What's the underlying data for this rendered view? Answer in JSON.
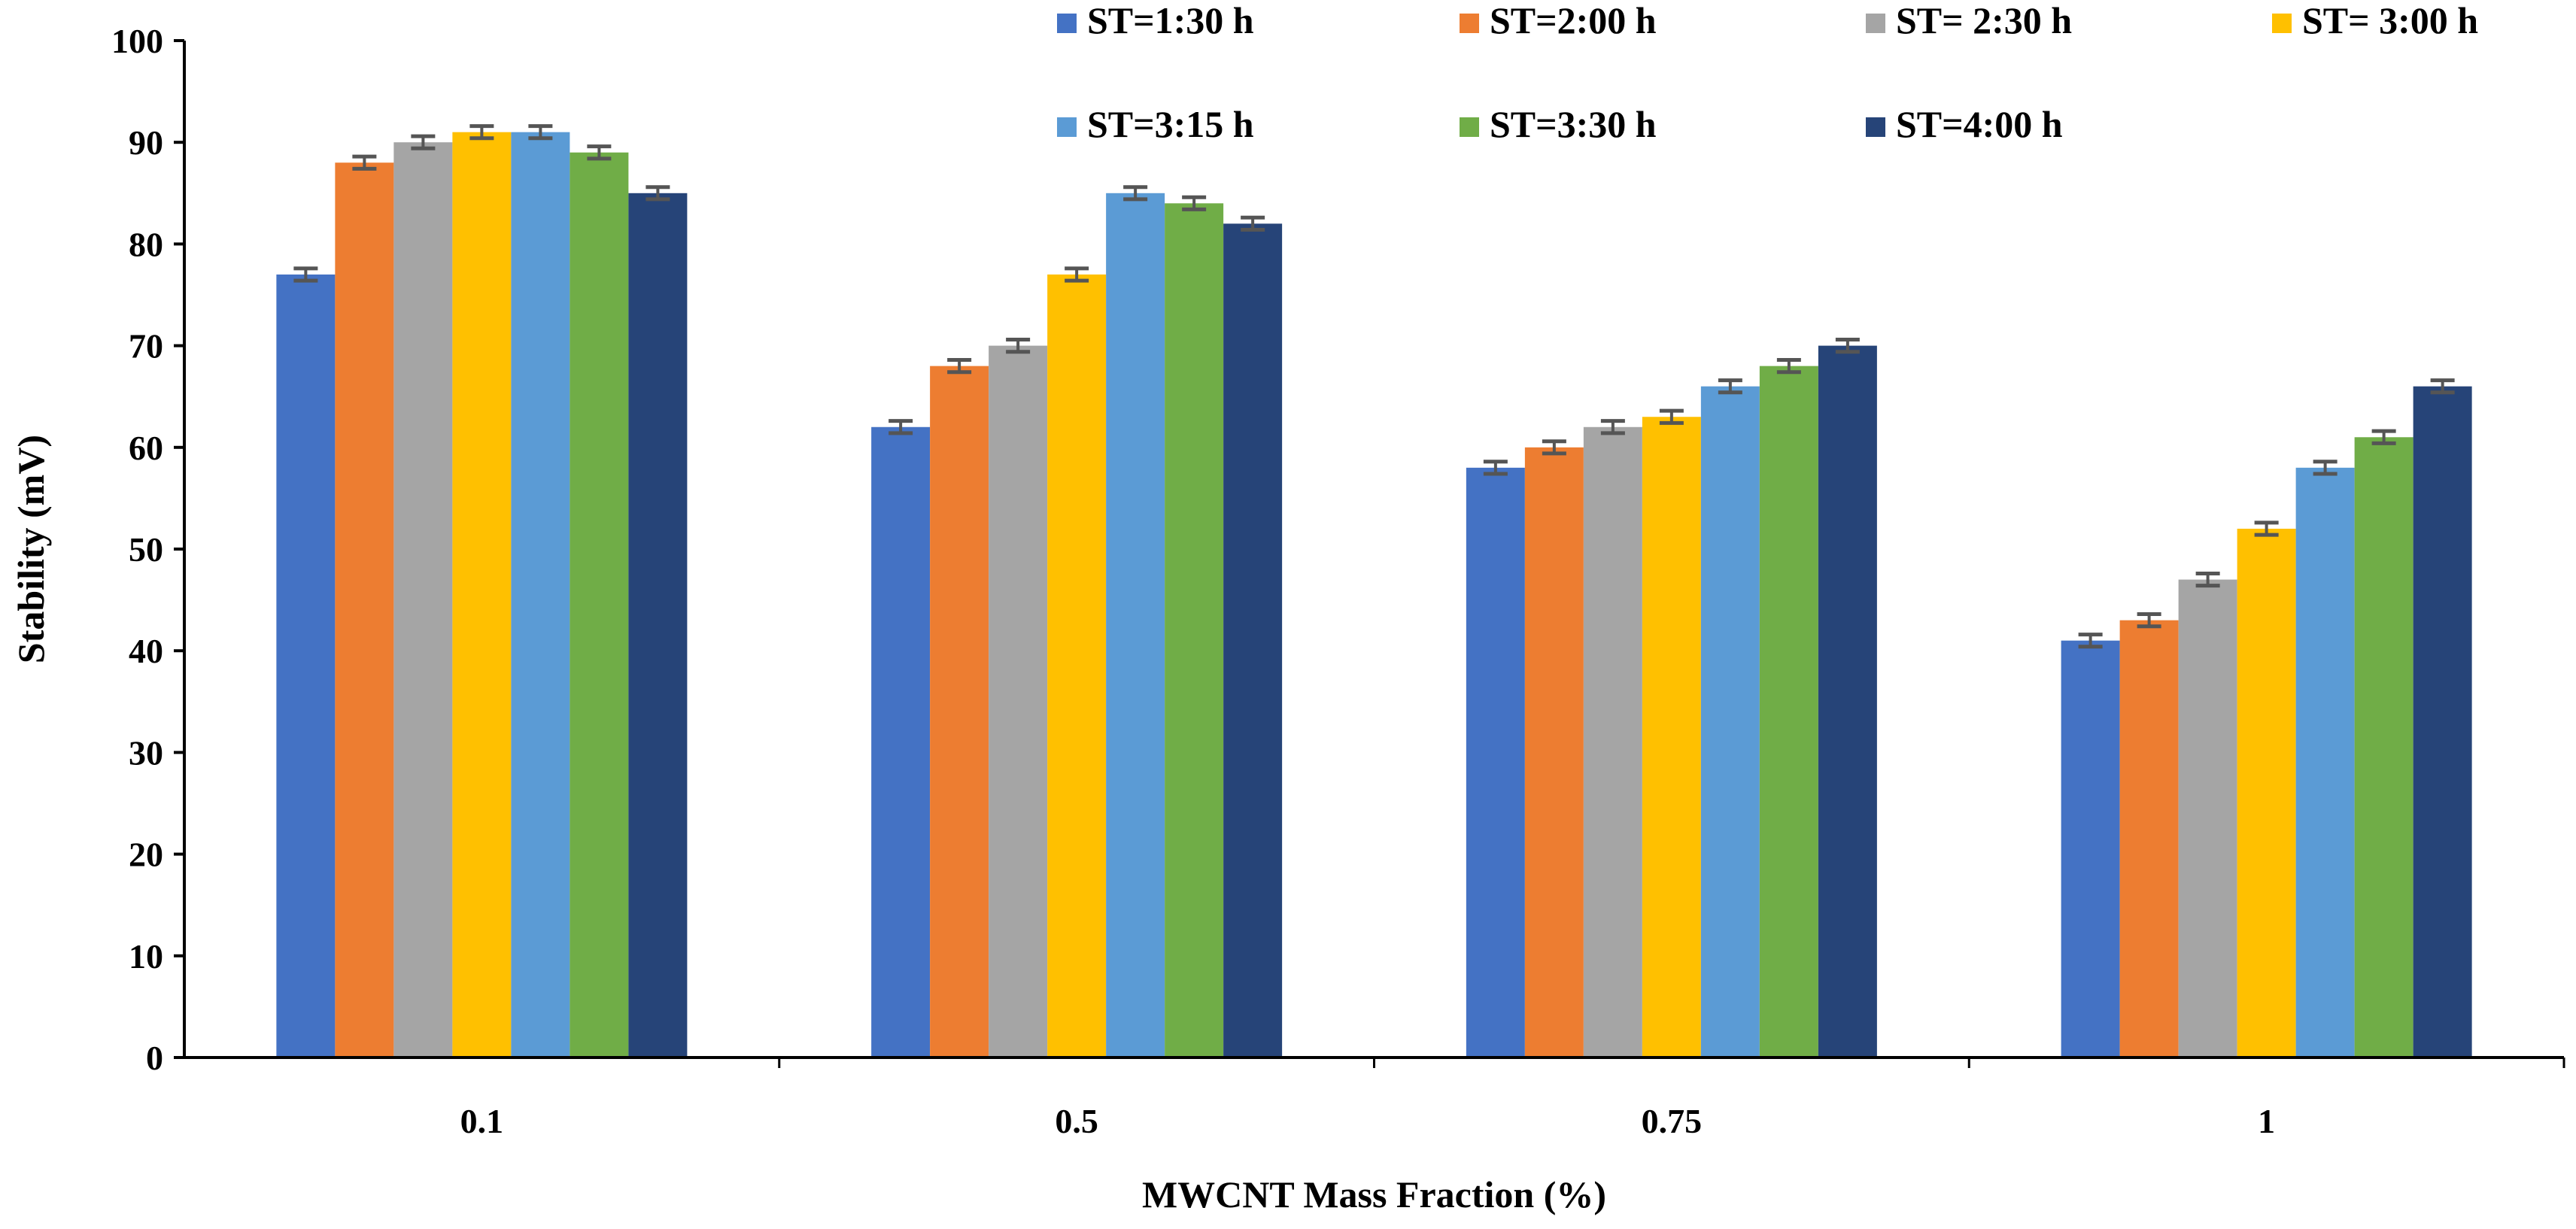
{
  "chart_data": {
    "type": "bar",
    "title": "",
    "xlabel": "MWCNT Mass Fraction (%)",
    "ylabel": "Stability (mV)",
    "categories": [
      "0.1",
      "0.5",
      "0.75",
      "1"
    ],
    "ylim": [
      0,
      100
    ],
    "yticks": [
      "0",
      "10",
      "20",
      "30",
      "40",
      "50",
      "60",
      "70",
      "80",
      "90",
      "100"
    ],
    "grid": false,
    "error_bars": true,
    "error": 0.6,
    "legend_position": "top-right",
    "series": [
      {
        "name": "ST=1:30 h",
        "color": "#4472C4",
        "values": [
          77,
          62,
          58,
          41
        ]
      },
      {
        "name": "ST=2:00 h",
        "color": "#ED7D31",
        "values": [
          88,
          68,
          60,
          43
        ]
      },
      {
        "name": "ST= 2:30 h",
        "color": "#A5A5A5",
        "values": [
          90,
          70,
          62,
          47
        ]
      },
      {
        "name": "ST= 3:00 h",
        "color": "#FFC000",
        "values": [
          91,
          77,
          63,
          52
        ]
      },
      {
        "name": "ST=3:15 h",
        "color": "#5B9BD5",
        "values": [
          91,
          85,
          66,
          58
        ]
      },
      {
        "name": "ST=3:30 h",
        "color": "#70AD47",
        "values": [
          89,
          84,
          68,
          61
        ]
      },
      {
        "name": "ST=4:00 h",
        "color": "#264478",
        "values": [
          85,
          82,
          70,
          66
        ]
      }
    ]
  }
}
